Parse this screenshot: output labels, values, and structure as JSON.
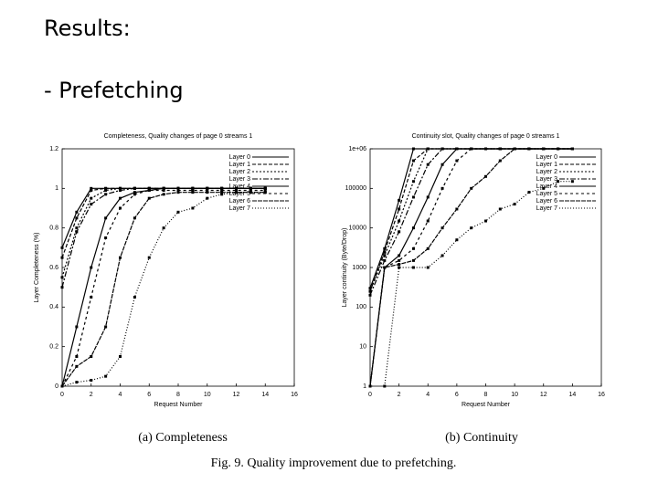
{
  "slide": {
    "title": "Results:",
    "bullet": "- Prefetching",
    "captions": [
      "(a) Completeness",
      "(b) Continuity"
    ],
    "figure_caption": "Fig. 9. Quality improvement due to prefetching."
  },
  "chart_data": [
    {
      "type": "line",
      "title": "Completeness, Quality changes of page 0 streams 1",
      "x_label": "Request Number",
      "y_label": "Layer Completeness (%)",
      "xlim": [
        0,
        16
      ],
      "xticks": [
        0,
        2,
        4,
        6,
        8,
        10,
        12,
        14,
        16
      ],
      "ylim": [
        0,
        1.2
      ],
      "yticks": [
        0,
        0.2,
        0.4,
        0.6,
        0.8,
        1,
        1.2
      ],
      "log_y": false,
      "legend": "upper right",
      "x": [
        0,
        1,
        2,
        3,
        4,
        5,
        6,
        7,
        8,
        9,
        10,
        11,
        12,
        13,
        14
      ],
      "series": [
        {
          "name": "Layer 0",
          "color": "#000000",
          "values": [
            0.7,
            0.88,
            1,
            1,
            1,
            1,
            1,
            1,
            1,
            1,
            1,
            1,
            1,
            1,
            1
          ]
        },
        {
          "name": "Layer 1",
          "color": "#000000",
          "values": [
            0.65,
            0.85,
            0.99,
            1,
            1,
            1,
            1,
            1,
            1,
            1,
            1,
            1,
            1,
            1,
            1
          ]
        },
        {
          "name": "Layer 2",
          "color": "#000000",
          "values": [
            0.55,
            0.8,
            0.95,
            0.99,
            1,
            1,
            1,
            1,
            1,
            1,
            1,
            1,
            1,
            1,
            1
          ]
        },
        {
          "name": "Layer 3",
          "color": "#000000",
          "values": [
            0.5,
            0.78,
            0.92,
            0.97,
            0.99,
            1,
            1,
            1,
            1,
            1,
            1,
            1,
            1,
            1,
            1
          ]
        },
        {
          "name": "Layer 4",
          "color": "#000000",
          "values": [
            0,
            0.3,
            0.6,
            0.85,
            0.95,
            0.98,
            0.99,
            1,
            1,
            1,
            1,
            1,
            1,
            1,
            1
          ]
        },
        {
          "name": "Layer 5",
          "color": "#000000",
          "values": [
            0,
            0.15,
            0.45,
            0.75,
            0.9,
            0.97,
            0.99,
            0.99,
            0.99,
            0.99,
            0.99,
            0.99,
            0.99,
            0.99,
            0.99
          ]
        },
        {
          "name": "Layer 6",
          "color": "#000000",
          "values": [
            0,
            0.1,
            0.15,
            0.3,
            0.65,
            0.85,
            0.95,
            0.97,
            0.98,
            0.98,
            0.98,
            0.98,
            0.98,
            0.98,
            0.98
          ]
        },
        {
          "name": "Layer 7",
          "color": "#000000",
          "values": [
            0,
            0.02,
            0.03,
            0.05,
            0.15,
            0.45,
            0.65,
            0.8,
            0.88,
            0.9,
            0.95,
            0.97,
            0.98,
            0.98,
            0.98
          ]
        }
      ]
    },
    {
      "type": "line",
      "title": "Continuity slot, Quality changes of page 0 streams 1",
      "x_label": "Request Number",
      "y_label": "Layer continuity (Byte/Drop)",
      "xlim": [
        0,
        16
      ],
      "xticks": [
        0,
        2,
        4,
        6,
        8,
        10,
        12,
        14,
        16
      ],
      "ylim": [
        1,
        1000000
      ],
      "yticks": [
        1,
        10,
        100,
        1000,
        10000,
        100000,
        {
          "value": 1000000,
          "label": "1e+06"
        }
      ],
      "log_y": true,
      "legend": "upper right",
      "x": [
        0,
        1,
        2,
        3,
        4,
        5,
        6,
        7,
        8,
        9,
        10,
        11,
        12,
        13,
        14
      ],
      "series": [
        {
          "name": "Layer 0",
          "color": "#000000",
          "values": [
            300,
            3000,
            50000,
            1000000,
            1000000,
            1000000,
            1000000,
            1000000,
            1000000,
            1000000,
            1000000,
            1000000,
            1000000,
            1000000,
            1000000
          ]
        },
        {
          "name": "Layer 1",
          "color": "#000000",
          "values": [
            250,
            2500,
            30000,
            500000,
            1000000,
            1000000,
            1000000,
            1000000,
            1000000,
            1000000,
            1000000,
            1000000,
            1000000,
            1000000,
            1000000
          ]
        },
        {
          "name": "Layer 2",
          "color": "#000000",
          "values": [
            250,
            2000,
            15000,
            150000,
            1000000,
            1000000,
            1000000,
            1000000,
            1000000,
            1000000,
            1000000,
            1000000,
            1000000,
            1000000,
            1000000
          ]
        },
        {
          "name": "Layer 3",
          "color": "#000000",
          "values": [
            200,
            1500,
            8000,
            60000,
            400000,
            1000000,
            1000000,
            1000000,
            1000000,
            1000000,
            1000000,
            1000000,
            1000000,
            1000000,
            1000000
          ]
        },
        {
          "name": "Layer 4",
          "color": "#000000",
          "values": [
            1,
            1000,
            2000,
            10000,
            60000,
            400000,
            1000000,
            1000000,
            1000000,
            1000000,
            1000000,
            1000000,
            1000000,
            1000000,
            1000000
          ]
        },
        {
          "name": "Layer 5",
          "color": "#000000",
          "values": [
            1,
            1000,
            1500,
            3000,
            15000,
            100000,
            500000,
            1000000,
            1000000,
            1000000,
            1000000,
            1000000,
            1000000,
            1000000,
            1000000
          ]
        },
        {
          "name": "Layer 6",
          "color": "#000000",
          "values": [
            1,
            1000,
            1200,
            1500,
            3000,
            10000,
            30000,
            100000,
            200000,
            500000,
            1000000,
            1000000,
            1000000,
            1000000,
            1000000
          ]
        },
        {
          "name": "Layer 7",
          "color": "#000000",
          "values": [
            null,
            1,
            1000,
            1000,
            1000,
            2000,
            5000,
            10000,
            15000,
            30000,
            40000,
            80000,
            100000,
            150000,
            150000
          ]
        }
      ]
    }
  ]
}
